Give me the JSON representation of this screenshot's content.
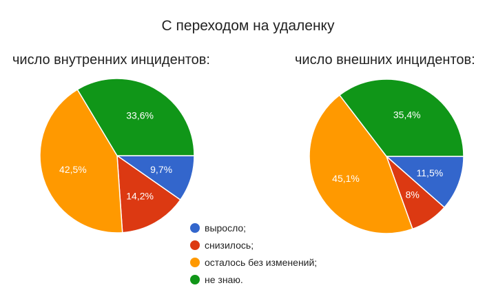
{
  "chart_data": {
    "type": "pie",
    "title": "С переходом на удаленку",
    "legend_position": "bottom-center",
    "categories": [
      "выросло;",
      "снизилось;",
      "осталось без изменений;",
      "не знаю."
    ],
    "colors": [
      "#3366cc",
      "#dc3912",
      "#ff9900",
      "#109618"
    ],
    "charts": [
      {
        "subtitle": "число внутренних инцидентов:",
        "values": [
          9.7,
          14.2,
          42.5,
          33.6
        ],
        "labels": [
          "9,7%",
          "14,2%",
          "42,5%",
          "33,6%"
        ]
      },
      {
        "subtitle": "число внешних инцидентов:",
        "values": [
          11.5,
          8,
          45.1,
          35.4
        ],
        "labels": [
          "11,5%",
          "8%",
          "45,1%",
          "35,4%"
        ]
      }
    ]
  }
}
